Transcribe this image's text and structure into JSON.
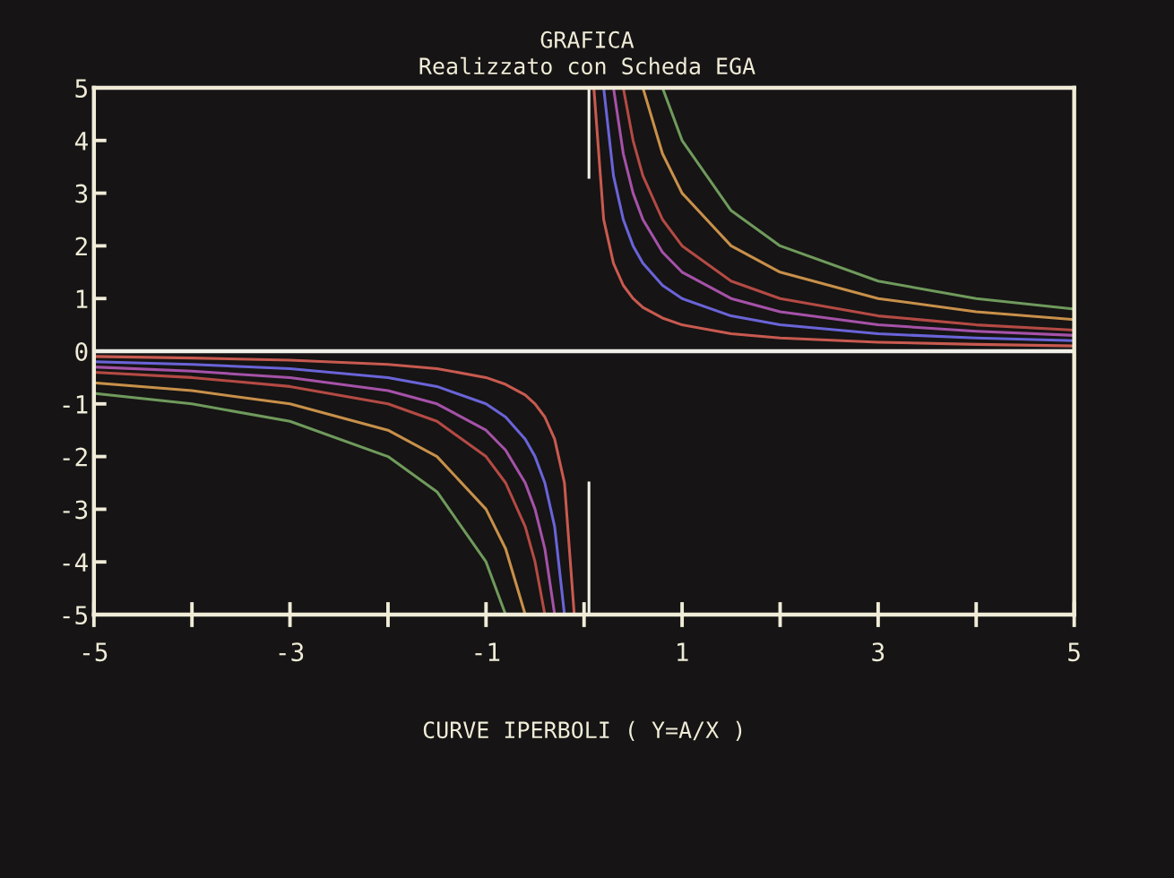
{
  "chart_data": {
    "type": "line",
    "title": "GRAFICA",
    "subtitle": "Realizzato con Scheda EGA",
    "xlabel": "CURVE IPERBOLI ( Y=A/X )",
    "xlim": [
      -5,
      5
    ],
    "ylim": [
      -5,
      5
    ],
    "xticks": [
      -5,
      {
        "value": -4,
        "label": null
      },
      -3,
      {
        "value": -2,
        "label": null
      },
      -1,
      {
        "value": 0,
        "label": null
      },
      1,
      {
        "value": 2,
        "label": null
      },
      3,
      {
        "value": 4,
        "label": null
      },
      5
    ],
    "yticks": [
      -5,
      -4,
      -3,
      -2,
      -1,
      0,
      1,
      2,
      3,
      4,
      5
    ],
    "grid": false,
    "marker": "none",
    "line_style": "solid",
    "ref_lines": [
      {
        "axis": "y",
        "value": 0,
        "color": "#f0f0e8"
      }
    ],
    "series": [
      {
        "color": "#6f9a5c",
        "x": [
          -5,
          -4,
          -3,
          -2,
          -1.5,
          -1,
          -0.8,
          0,
          0.8,
          1,
          1.5,
          2,
          3,
          4,
          5
        ],
        "values": [
          -0.8,
          -1,
          -1.33,
          -2,
          -2.67,
          -4,
          -5,
          null,
          5,
          4,
          2.67,
          2,
          1.33,
          1,
          0.8
        ]
      },
      {
        "color": "#c8904a",
        "x": [
          -5,
          -4,
          -3,
          -2,
          -1.5,
          -1,
          -0.8,
          -0.6,
          0,
          0.6,
          0.8,
          1,
          1.5,
          2,
          3,
          4,
          5
        ],
        "values": [
          -0.6,
          -0.75,
          -1,
          -1.5,
          -2,
          -3,
          -3.75,
          -5,
          null,
          5,
          3.75,
          3,
          2,
          1.5,
          1,
          0.75,
          0.6
        ]
      },
      {
        "color": "#b44a44",
        "x": [
          -5,
          -4,
          -3,
          -2,
          -1.5,
          -1,
          -0.8,
          -0.6,
          -0.5,
          -0.4,
          0,
          0.4,
          0.5,
          0.6,
          0.8,
          1,
          1.5,
          2,
          3,
          4,
          5
        ],
        "values": [
          -0.4,
          -0.5,
          -0.67,
          -1,
          -1.33,
          -2,
          -2.5,
          -3.33,
          -4,
          -5,
          null,
          5,
          4,
          3.33,
          2.5,
          2,
          1.33,
          1,
          0.67,
          0.5,
          0.4
        ]
      },
      {
        "color": "#a552a8",
        "x": [
          -5,
          -4,
          -3,
          -2,
          -1.5,
          -1,
          -0.8,
          -0.6,
          -0.5,
          -0.4,
          -0.3,
          0,
          0.3,
          0.4,
          0.5,
          0.6,
          0.8,
          1,
          1.5,
          2,
          3,
          4,
          5
        ],
        "values": [
          -0.3,
          -0.38,
          -0.5,
          -0.75,
          -1,
          -1.5,
          -1.88,
          -2.5,
          -3,
          -3.75,
          -5,
          null,
          5,
          3.75,
          3,
          2.5,
          1.88,
          1.5,
          1,
          0.75,
          0.5,
          0.38,
          0.3
        ]
      },
      {
        "color": "#6a64d8",
        "x": [
          -5,
          -4,
          -3,
          -2,
          -1.5,
          -1,
          -0.8,
          -0.6,
          -0.5,
          -0.4,
          -0.3,
          -0.2,
          0,
          0.2,
          0.3,
          0.4,
          0.5,
          0.6,
          0.8,
          1,
          1.5,
          2,
          3,
          4,
          5
        ],
        "values": [
          -0.2,
          -0.25,
          -0.33,
          -0.5,
          -0.67,
          -1,
          -1.25,
          -1.67,
          -2,
          -2.5,
          -3.33,
          -5,
          null,
          5,
          3.33,
          2.5,
          2,
          1.67,
          1.25,
          1,
          0.67,
          0.5,
          0.33,
          0.25,
          0.2
        ]
      },
      {
        "color": "#c85a50",
        "x": [
          -5,
          -4,
          -3,
          -2,
          -1.5,
          -1,
          -0.8,
          -0.6,
          -0.5,
          -0.4,
          -0.3,
          -0.2,
          -0.1,
          0,
          0.1,
          0.2,
          0.3,
          0.4,
          0.5,
          0.6,
          0.8,
          1,
          1.5,
          2,
          3,
          4,
          5
        ],
        "values": [
          -0.1,
          -0.13,
          -0.17,
          -0.25,
          -0.33,
          -0.5,
          -0.63,
          -0.83,
          -1,
          -1.25,
          -1.67,
          -2.5,
          -5,
          null,
          5,
          2.5,
          1.67,
          1.25,
          1,
          0.83,
          0.63,
          0.5,
          0.33,
          0.25,
          0.17,
          0.13,
          0.1
        ]
      },
      {
        "color": "#f0f0e8",
        "x": [
          0.05,
          0.05
        ],
        "values": [
          3.3,
          5
        ]
      },
      {
        "color": "#f0f0e8",
        "x": [
          0.05,
          0.05
        ],
        "values": [
          -2.5,
          -5
        ]
      }
    ]
  }
}
